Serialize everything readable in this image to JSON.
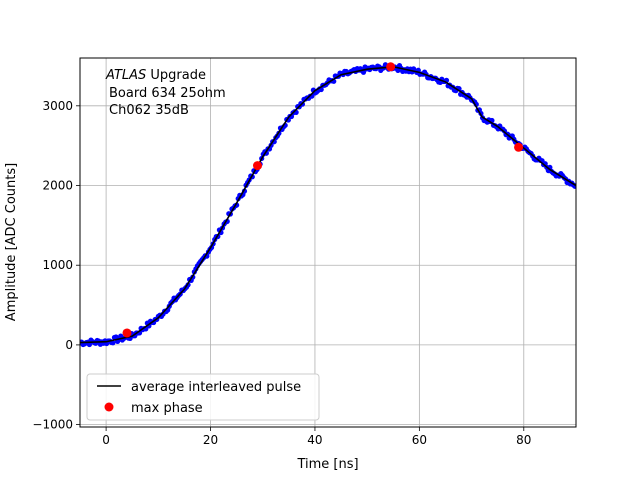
{
  "chart_data": {
    "type": "scatter",
    "xlabel": "Time [ns]",
    "ylabel": "Amplitude [ADC Counts]",
    "xlim": [
      -5,
      90
    ],
    "ylim": [
      -1030,
      3600
    ],
    "xticks": [
      0,
      20,
      40,
      60,
      80
    ],
    "yticks": [
      -1000,
      0,
      1000,
      2000,
      3000
    ],
    "grid": true,
    "legend_position": "lower-left",
    "annotation": {
      "line1_italic": "ATLAS",
      "line1_rest": " Upgrade",
      "line2": "Board 634 25ohm",
      "line3": "Ch062 35dB"
    },
    "series": [
      {
        "role": "samples",
        "color": "#0000ff",
        "marker": "dot",
        "x": [
          -5,
          0,
          5,
          10,
          15,
          20,
          25,
          30,
          35,
          40,
          45,
          50,
          55,
          60,
          65,
          70,
          72,
          75,
          80,
          85,
          90
        ],
        "y": [
          30,
          40,
          110,
          340,
          700,
          1220,
          1780,
          2360,
          2860,
          3190,
          3390,
          3460,
          3490,
          3420,
          3300,
          3090,
          2860,
          2740,
          2470,
          2200,
          2000
        ]
      },
      {
        "name": "average interleaved pulse",
        "color": "#000000",
        "style": "line",
        "x": [
          -5,
          0,
          5,
          10,
          15,
          20,
          25,
          30,
          35,
          40,
          45,
          50,
          55,
          60,
          65,
          70,
          72,
          75,
          80,
          85,
          90
        ],
        "y": [
          30,
          40,
          110,
          340,
          700,
          1220,
          1780,
          2360,
          2860,
          3190,
          3390,
          3460,
          3490,
          3420,
          3300,
          3090,
          2860,
          2740,
          2470,
          2200,
          2000
        ]
      },
      {
        "name": "max phase",
        "color": "#ff0000",
        "marker": "circle",
        "x": [
          4,
          29,
          54.5,
          79
        ],
        "y": [
          150,
          2250,
          3490,
          2480
        ]
      }
    ]
  }
}
